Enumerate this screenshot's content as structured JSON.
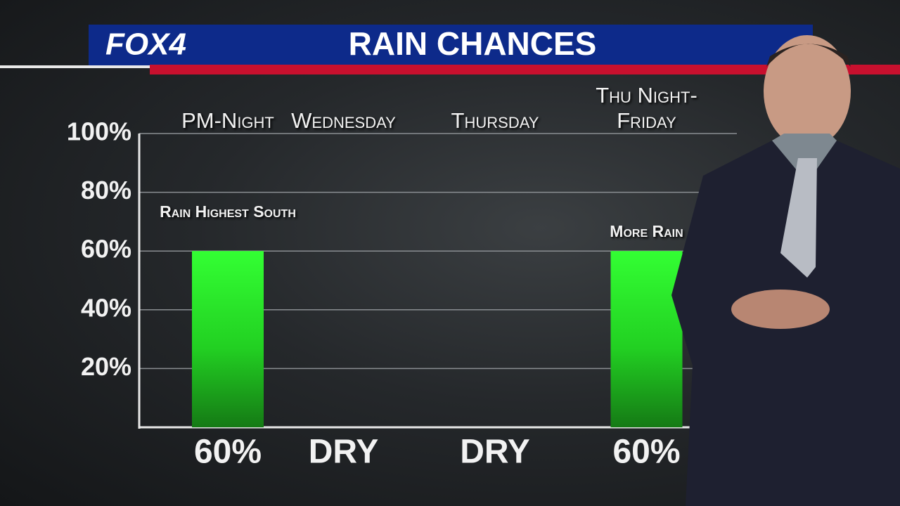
{
  "logo": "FOX4",
  "chart_data": {
    "type": "bar",
    "title": "RAIN CHANCES",
    "categories": [
      "PM-Night",
      "Wednesday",
      "Thursday",
      "Thu Night-Friday"
    ],
    "values": [
      60,
      null,
      null,
      60
    ],
    "value_labels": [
      "60%",
      "DRY",
      "DRY",
      "60%"
    ],
    "annotations": [
      "Rain Highest South",
      "More Rain"
    ],
    "color": "#2cf02c",
    "ylim": [
      0,
      100
    ],
    "yticks": [
      {
        "value": 20,
        "label": "20%"
      },
      {
        "value": 40,
        "label": "40%"
      },
      {
        "value": 60,
        "label": "60%"
      },
      {
        "value": 80,
        "label": "80%"
      },
      {
        "value": 100,
        "label": "100%"
      }
    ],
    "grid": true
  }
}
